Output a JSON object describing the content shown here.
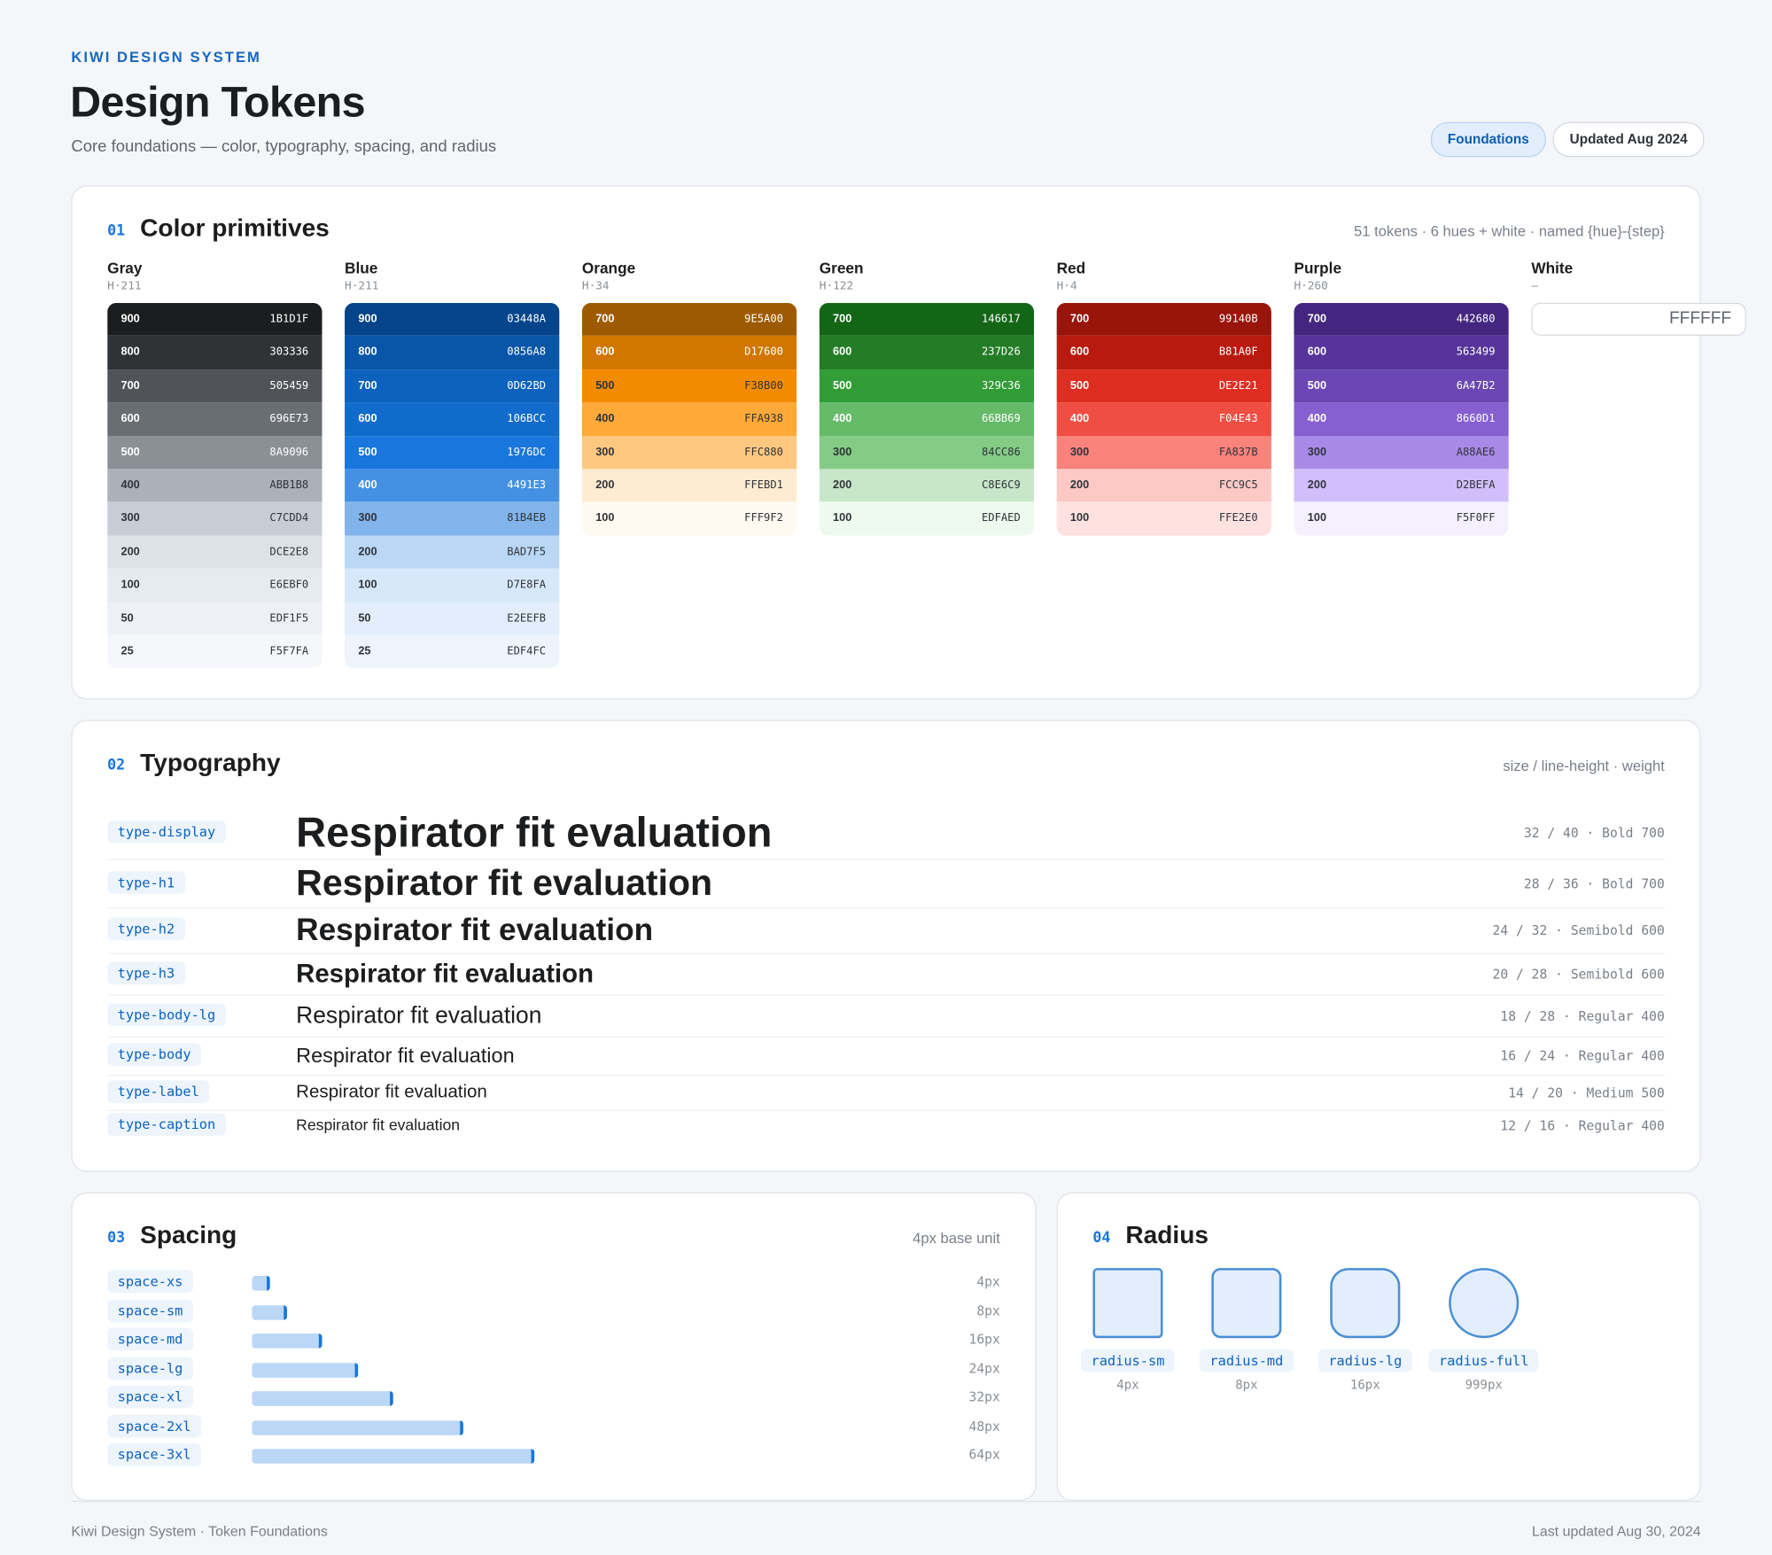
{
  "header": {
    "eyebrow": "KIWI DESIGN SYSTEM",
    "title": "Design Tokens",
    "subtitle": "Core foundations — color, typography, spacing, and radius",
    "badges": [
      "Foundations",
      "Updated Aug 2024"
    ]
  },
  "colors": {
    "number": "01",
    "title": "Color primitives",
    "meta": "51 tokens · 6 hues + white · named {hue}-{step}",
    "hues": [
      {
        "name": "Gray",
        "hue": "H·211",
        "swatches": [
          {
            "step": "900",
            "hex": "1B1D1F"
          },
          {
            "step": "800",
            "hex": "303336"
          },
          {
            "step": "700",
            "hex": "505459"
          },
          {
            "step": "600",
            "hex": "696E73"
          },
          {
            "step": "500",
            "hex": "8A9096"
          },
          {
            "step": "400",
            "hex": "ABB1B8"
          },
          {
            "step": "300",
            "hex": "C7CDD4"
          },
          {
            "step": "200",
            "hex": "DCE2E8"
          },
          {
            "step": "100",
            "hex": "E6EBF0"
          },
          {
            "step": "50",
            "hex": "EDF1F5"
          },
          {
            "step": "25",
            "hex": "F5F7FA"
          }
        ]
      },
      {
        "name": "Blue",
        "hue": "H·211",
        "swatches": [
          {
            "step": "900",
            "hex": "03448A"
          },
          {
            "step": "800",
            "hex": "0856A8"
          },
          {
            "step": "700",
            "hex": "0D62BD"
          },
          {
            "step": "600",
            "hex": "106BCC"
          },
          {
            "step": "500",
            "hex": "1976DC"
          },
          {
            "step": "400",
            "hex": "4491E3"
          },
          {
            "step": "300",
            "hex": "81B4EB"
          },
          {
            "step": "200",
            "hex": "BAD7F5"
          },
          {
            "step": "100",
            "hex": "D7E8FA"
          },
          {
            "step": "50",
            "hex": "E2EEFB"
          },
          {
            "step": "25",
            "hex": "EDF4FC"
          }
        ]
      },
      {
        "name": "Orange",
        "hue": "H·34",
        "swatches": [
          {
            "step": "700",
            "hex": "9E5A00"
          },
          {
            "step": "600",
            "hex": "D17600"
          },
          {
            "step": "500",
            "hex": "F38B00"
          },
          {
            "step": "400",
            "hex": "FFA938"
          },
          {
            "step": "300",
            "hex": "FFC880"
          },
          {
            "step": "200",
            "hex": "FFEBD1"
          },
          {
            "step": "100",
            "hex": "FFF9F2"
          }
        ]
      },
      {
        "name": "Green",
        "hue": "H·122",
        "swatches": [
          {
            "step": "700",
            "hex": "146617"
          },
          {
            "step": "600",
            "hex": "237D26"
          },
          {
            "step": "500",
            "hex": "329C36"
          },
          {
            "step": "400",
            "hex": "66BB69"
          },
          {
            "step": "300",
            "hex": "84CC86"
          },
          {
            "step": "200",
            "hex": "C8E6C9"
          },
          {
            "step": "100",
            "hex": "EDFAED"
          }
        ]
      },
      {
        "name": "Red",
        "hue": "H·4",
        "swatches": [
          {
            "step": "700",
            "hex": "99140B"
          },
          {
            "step": "600",
            "hex": "B81A0F"
          },
          {
            "step": "500",
            "hex": "DE2E21"
          },
          {
            "step": "400",
            "hex": "F04E43"
          },
          {
            "step": "300",
            "hex": "FA837B"
          },
          {
            "step": "200",
            "hex": "FCC9C5"
          },
          {
            "step": "100",
            "hex": "FFE2E0"
          }
        ]
      },
      {
        "name": "Purple",
        "hue": "H·260",
        "swatches": [
          {
            "step": "700",
            "hex": "442680"
          },
          {
            "step": "600",
            "hex": "563499"
          },
          {
            "step": "500",
            "hex": "6A47B2"
          },
          {
            "step": "400",
            "hex": "8660D1"
          },
          {
            "step": "300",
            "hex": "A88AE6"
          },
          {
            "step": "200",
            "hex": "D2BEFA"
          },
          {
            "step": "100",
            "hex": "F5F0FF"
          }
        ]
      },
      {
        "name": "White",
        "hue": "—",
        "swatches": [
          {
            "hex": "FFFFFF"
          }
        ]
      }
    ]
  },
  "typography": {
    "number": "02",
    "title": "Typography",
    "meta": "size / line-height · weight",
    "sample": "Respirator fit evaluation",
    "rows": [
      {
        "token": "type-display",
        "size": 32,
        "line_height": 40,
        "weight": 700,
        "spec": "32 / 40 · Bold 700"
      },
      {
        "token": "type-h1",
        "size": 28,
        "line_height": 36,
        "weight": 700,
        "spec": "28 / 36 · Bold 700"
      },
      {
        "token": "type-h2",
        "size": 24,
        "line_height": 32,
        "weight": 600,
        "spec": "24 / 32 · Semibold 600"
      },
      {
        "token": "type-h3",
        "size": 20,
        "line_height": 28,
        "weight": 600,
        "spec": "20 / 28 · Semibold 600"
      },
      {
        "token": "type-body-lg",
        "size": 18,
        "line_height": 28,
        "weight": 400,
        "spec": "18 / 28 · Regular 400"
      },
      {
        "token": "type-body",
        "size": 16,
        "line_height": 24,
        "weight": 400,
        "spec": "16 / 24 · Regular 400"
      },
      {
        "token": "type-label",
        "size": 14,
        "line_height": 20,
        "weight": 500,
        "spec": "14 / 20 · Medium 500"
      },
      {
        "token": "type-caption",
        "size": 12,
        "line_height": 16,
        "weight": 400,
        "spec": "12 / 16 · Regular 400"
      }
    ]
  },
  "spacing": {
    "number": "03",
    "title": "Spacing",
    "meta": "4px base unit",
    "rows": [
      {
        "token": "space-xs",
        "value": 4,
        "label": "4px"
      },
      {
        "token": "space-sm",
        "value": 8,
        "label": "8px"
      },
      {
        "token": "space-md",
        "value": 16,
        "label": "16px"
      },
      {
        "token": "space-lg",
        "value": 24,
        "label": "24px"
      },
      {
        "token": "space-xl",
        "value": 32,
        "label": "32px"
      },
      {
        "token": "space-2xl",
        "value": 48,
        "label": "48px"
      },
      {
        "token": "space-3xl",
        "value": 64,
        "label": "64px"
      }
    ]
  },
  "radius": {
    "number": "04",
    "title": "Radius",
    "items": [
      {
        "token": "radius-sm",
        "value": 4,
        "label": "4px"
      },
      {
        "token": "radius-md",
        "value": 8,
        "label": "8px"
      },
      {
        "token": "radius-lg",
        "value": 16,
        "label": "16px"
      },
      {
        "token": "radius-full",
        "value": 999,
        "label": "999px"
      }
    ]
  },
  "footer": {
    "left": "Kiwi Design System · Token Foundations",
    "right": "Last updated Aug 30, 2024"
  }
}
